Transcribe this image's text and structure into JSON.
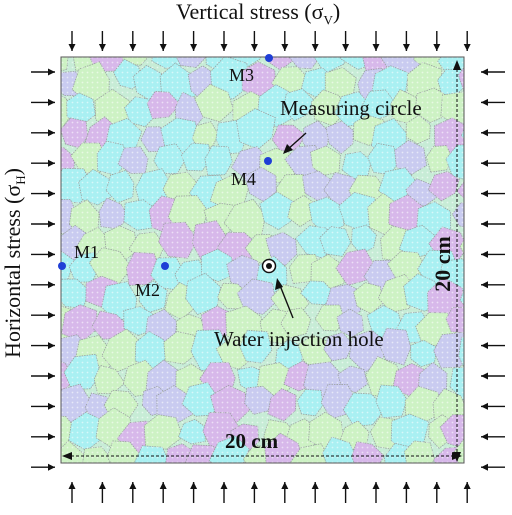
{
  "labels": {
    "vertical_stress_text": "Vertical stress (σ",
    "vertical_stress_sub": "V",
    "vertical_stress_close": ")",
    "horizontal_stress_text": "Horizontal stress (σ",
    "horizontal_stress_sub": "H",
    "horizontal_stress_close": ")",
    "measuring_circle": "Measuring circle",
    "water_injection_hole": "Water injection hole",
    "dim_horizontal": "20 cm",
    "dim_vertical": "20 cm"
  },
  "measuring_points": [
    {
      "id": "M1",
      "label": "M1"
    },
    {
      "id": "M2",
      "label": "M2"
    },
    {
      "id": "M3",
      "label": "M3"
    },
    {
      "id": "M4",
      "label": "M4"
    }
  ],
  "colors": {
    "grain_cyan": "#a9f0f2",
    "grain_green": "#cdf2c4",
    "grain_lavender": "#c9cbf0",
    "grain_violet": "#d7b8ea",
    "grain_boundary": "#9aa0a0",
    "measure_point": "#1f3fd6",
    "arrow": "#111111"
  },
  "icons": [
    "stress-arrow-icon",
    "measure-point-icon",
    "injection-hole-icon",
    "leader-arrow-icon"
  ]
}
